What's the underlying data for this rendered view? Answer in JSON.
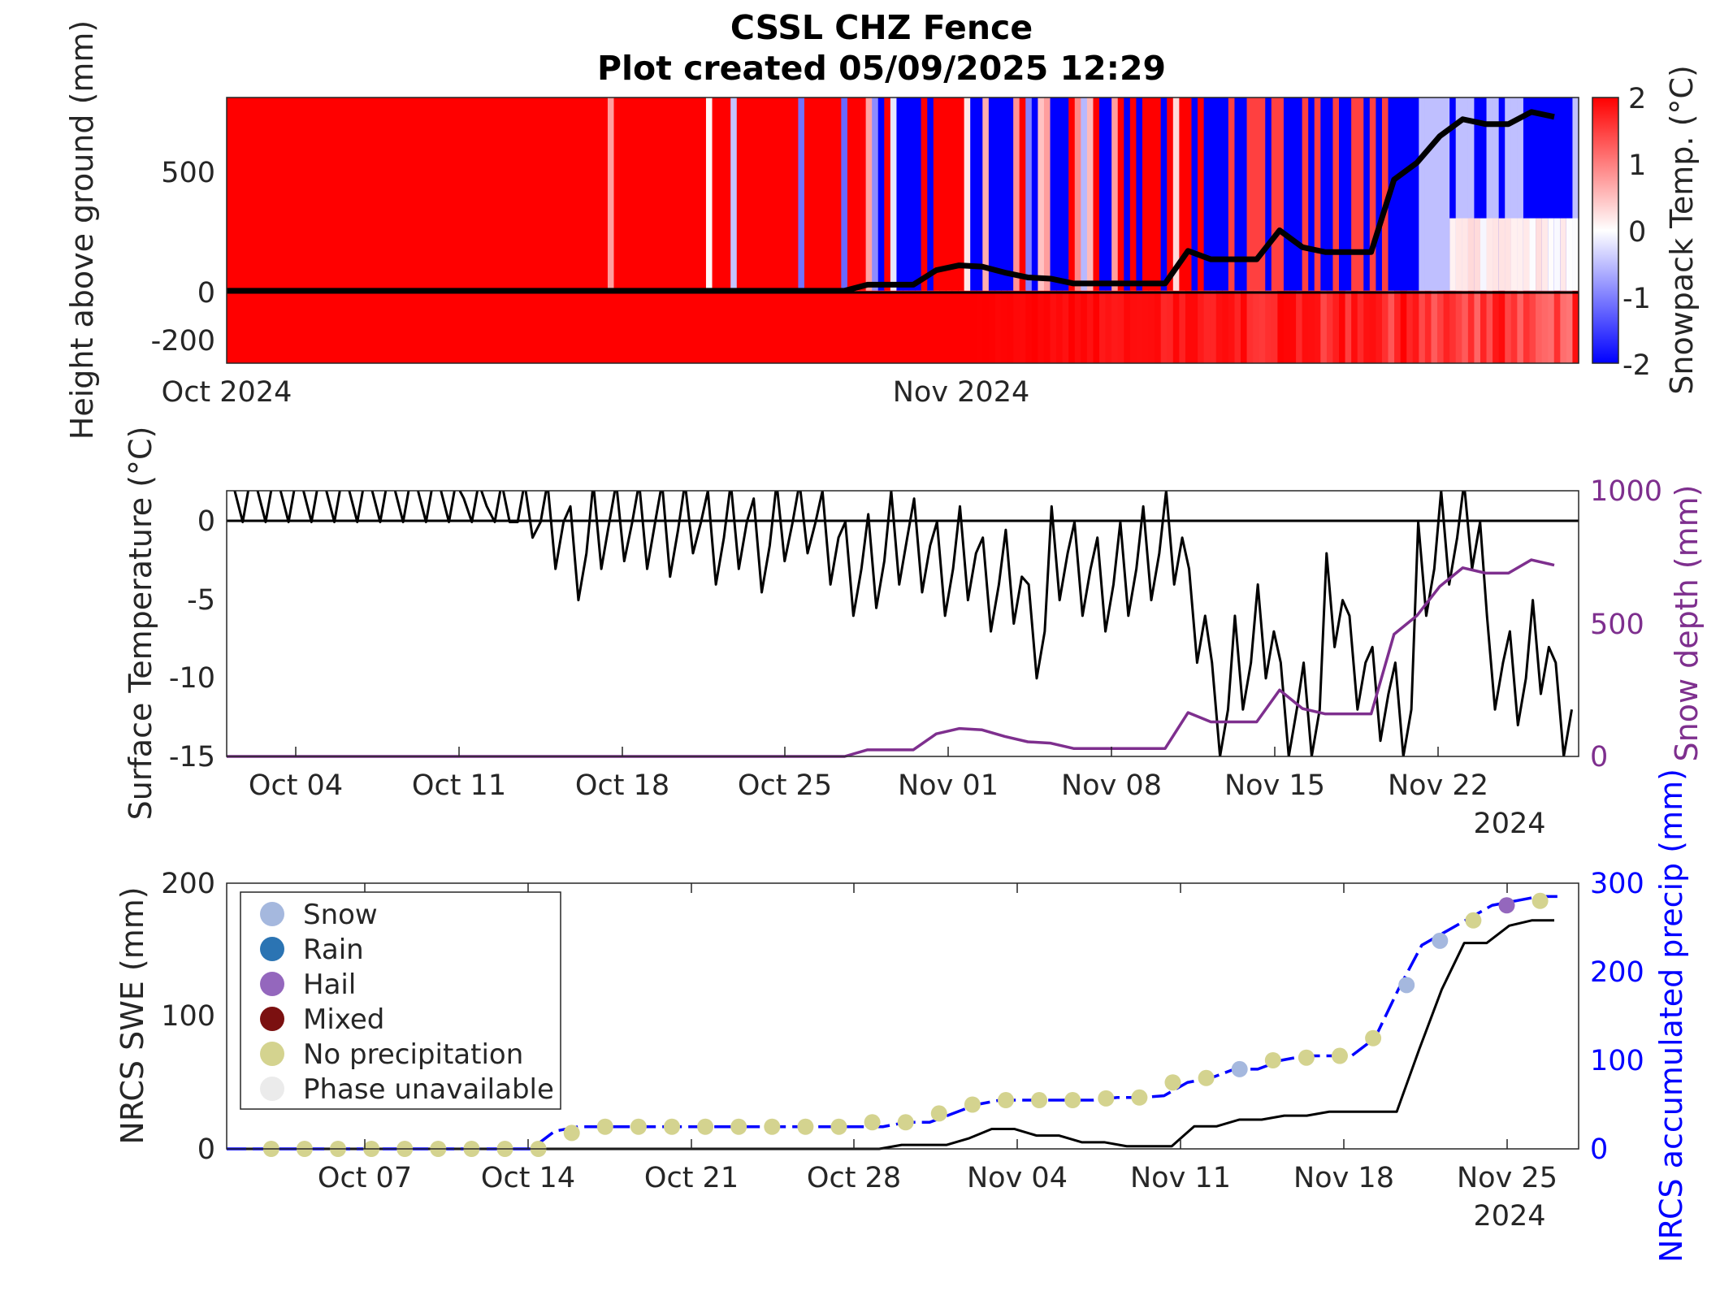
{
  "title": {
    "line1": "CSSL CHZ Fence",
    "line2": "Plot created 05/09/2025 12:29"
  },
  "colors": {
    "warm": "#ff0000",
    "cold": "#0000ff",
    "snow_depth": "#7e2f8e",
    "precip_line": "#0000ff",
    "swe_line": "#000000",
    "snow": "#a5b8de",
    "rain": "#2b74b3",
    "hail": "#9467bd",
    "mixed": "#7b1010",
    "no_precip": "#d4d38f",
    "unavailable": "#ebebeb"
  },
  "chart_data": [
    {
      "type": "heatmap",
      "ylabel": "Height above ground (mm)",
      "colorbar_label": "Snowpack Temp. (°C)",
      "color_range": [
        -2,
        2
      ],
      "colorbar_ticks": [
        "2",
        "1",
        "0",
        "-1",
        "-2"
      ],
      "ylim": [
        -300,
        800
      ],
      "yticks": [
        "500",
        "0",
        "-200"
      ],
      "x_tick_labels": [
        "Oct 2024",
        "Nov 2024"
      ],
      "x_start": "2024-10-01",
      "x_end": "2024-11-26",
      "snow_depth_mm": [
        0,
        0,
        0,
        0,
        0,
        0,
        0,
        0,
        0,
        0,
        0,
        0,
        0,
        0,
        0,
        0,
        0,
        0,
        0,
        0,
        0,
        0,
        0,
        0,
        0,
        0,
        0,
        0,
        25,
        25,
        25,
        85,
        105,
        100,
        75,
        55,
        50,
        30,
        30,
        30,
        30,
        30,
        165,
        130,
        130,
        130,
        250,
        180,
        160,
        160,
        160,
        460,
        530,
        640,
        710,
        690,
        690,
        740,
        720
      ]
    },
    {
      "type": "line",
      "ylabel": "Surface Temperature (°C)",
      "ylabel_right": "Snow depth (mm)",
      "ylim": [
        -15,
        2
      ],
      "ylim_right": [
        0,
        1000
      ],
      "yticks": [
        "0",
        "-5",
        "-10",
        "-15"
      ],
      "yticks_right": [
        "1000",
        "500",
        "0"
      ],
      "x_tick_labels": [
        "Oct 04",
        "Oct 11",
        "Oct 18",
        "Oct 25",
        "Nov 01",
        "Nov 08",
        "Nov 15",
        "Nov 22"
      ],
      "x_year_label": "2024",
      "reference_line": 0,
      "snow_depth_mm": [
        0,
        0,
        0,
        0,
        0,
        0,
        0,
        0,
        0,
        0,
        0,
        0,
        0,
        0,
        0,
        0,
        0,
        0,
        0,
        0,
        0,
        0,
        0,
        0,
        0,
        0,
        0,
        0,
        25,
        25,
        25,
        85,
        105,
        100,
        75,
        55,
        50,
        30,
        30,
        30,
        30,
        30,
        165,
        130,
        130,
        130,
        250,
        180,
        160,
        160,
        160,
        460,
        530,
        640,
        710,
        690,
        690,
        740,
        720
      ],
      "surface_temp_daily_min": [
        2,
        2,
        2,
        2,
        2,
        2,
        2,
        2,
        2,
        2,
        1.5,
        1,
        0,
        -1,
        -3,
        -5,
        -3,
        -2.5,
        -3,
        -3.5,
        -2,
        -4,
        -3,
        -4.5,
        -2.5,
        -2,
        -4,
        -6,
        -5.5,
        -4,
        -4.5,
        -6,
        -5,
        -7,
        -6.5,
        -10,
        -5,
        -6,
        -7,
        -6,
        -5,
        -4,
        -9,
        -15,
        -12,
        -10,
        -15,
        -15,
        -8,
        -12,
        -14,
        -15,
        -6,
        -4,
        -3,
        -12,
        -13,
        -11,
        -15
      ]
    },
    {
      "type": "line",
      "ylabel": "NRCS SWE (mm)",
      "ylabel_right": "NRCS accumulated precip (mm)",
      "ylim": [
        0,
        200
      ],
      "ylim_right": [
        0,
        300
      ],
      "yticks": [
        "200",
        "100",
        "0"
      ],
      "yticks_right": [
        "300",
        "200",
        "100",
        "0"
      ],
      "x_tick_labels": [
        "Oct 07",
        "Oct 14",
        "Oct 21",
        "Oct 28",
        "Nov 04",
        "Nov 11",
        "Nov 18",
        "Nov 25"
      ],
      "x_year_label": "2024",
      "swe_mm": [
        0,
        0,
        0,
        0,
        0,
        0,
        0,
        0,
        0,
        0,
        0,
        0,
        0,
        0,
        0,
        0,
        0,
        0,
        0,
        0,
        0,
        0,
        0,
        0,
        0,
        0,
        0,
        0,
        0,
        0,
        3,
        3,
        3,
        8,
        15,
        15,
        10,
        10,
        5,
        5,
        2,
        2,
        2,
        17,
        17,
        22,
        22,
        25,
        25,
        28,
        28,
        28,
        28,
        75,
        120,
        155,
        155,
        168,
        172,
        172
      ],
      "precip_mm": [
        0,
        0,
        0,
        0,
        0,
        0,
        0,
        0,
        0,
        0,
        0,
        0,
        0,
        0,
        20,
        25,
        25,
        25,
        25,
        25,
        25,
        25,
        25,
        25,
        25,
        25,
        25,
        25,
        25,
        30,
        30,
        40,
        50,
        55,
        55,
        55,
        55,
        55,
        58,
        58,
        60,
        75,
        80,
        90,
        90,
        100,
        105,
        105,
        105,
        125,
        180,
        230,
        245,
        260,
        275,
        280,
        285,
        285
      ],
      "phase_markers": [
        {
          "day": 2,
          "mm": 0,
          "phase": "no_precip"
        },
        {
          "day": 3.5,
          "mm": 0,
          "phase": "no_precip"
        },
        {
          "day": 5,
          "mm": 0,
          "phase": "no_precip"
        },
        {
          "day": 6.5,
          "mm": 0,
          "phase": "no_precip"
        },
        {
          "day": 8,
          "mm": 0,
          "phase": "no_precip"
        },
        {
          "day": 9.5,
          "mm": 0,
          "phase": "no_precip"
        },
        {
          "day": 11,
          "mm": 0,
          "phase": "no_precip"
        },
        {
          "day": 12.5,
          "mm": 0,
          "phase": "no_precip"
        },
        {
          "day": 14,
          "mm": 0,
          "phase": "no_precip"
        },
        {
          "day": 15.5,
          "mm": 18,
          "phase": "no_precip"
        },
        {
          "day": 17,
          "mm": 25,
          "phase": "no_precip"
        },
        {
          "day": 18.5,
          "mm": 25,
          "phase": "no_precip"
        },
        {
          "day": 20,
          "mm": 25,
          "phase": "no_precip"
        },
        {
          "day": 21.5,
          "mm": 25,
          "phase": "no_precip"
        },
        {
          "day": 23,
          "mm": 25,
          "phase": "no_precip"
        },
        {
          "day": 24.5,
          "mm": 25,
          "phase": "no_precip"
        },
        {
          "day": 26,
          "mm": 25,
          "phase": "no_precip"
        },
        {
          "day": 27.5,
          "mm": 25,
          "phase": "no_precip"
        },
        {
          "day": 29,
          "mm": 30,
          "phase": "no_precip"
        },
        {
          "day": 30.5,
          "mm": 30,
          "phase": "no_precip"
        },
        {
          "day": 32,
          "mm": 40,
          "phase": "no_precip"
        },
        {
          "day": 33.5,
          "mm": 50,
          "phase": "no_precip"
        },
        {
          "day": 35,
          "mm": 55,
          "phase": "no_precip"
        },
        {
          "day": 36.5,
          "mm": 55,
          "phase": "no_precip"
        },
        {
          "day": 38,
          "mm": 55,
          "phase": "no_precip"
        },
        {
          "day": 39.5,
          "mm": 57,
          "phase": "no_precip"
        },
        {
          "day": 41,
          "mm": 58,
          "phase": "no_precip"
        },
        {
          "day": 42.5,
          "mm": 75,
          "phase": "no_precip"
        },
        {
          "day": 44,
          "mm": 80,
          "phase": "no_precip"
        },
        {
          "day": 45.5,
          "mm": 90,
          "phase": "snow"
        },
        {
          "day": 47,
          "mm": 100,
          "phase": "no_precip"
        },
        {
          "day": 48.5,
          "mm": 103,
          "phase": "no_precip"
        },
        {
          "day": 50,
          "mm": 105,
          "phase": "no_precip"
        },
        {
          "day": 51.5,
          "mm": 125,
          "phase": "no_precip"
        },
        {
          "day": 53,
          "mm": 185,
          "phase": "snow"
        },
        {
          "day": 54.5,
          "mm": 235,
          "phase": "snow"
        },
        {
          "day": 56,
          "mm": 258,
          "phase": "no_precip"
        },
        {
          "day": 57.5,
          "mm": 275,
          "phase": "hail"
        },
        {
          "day": 59,
          "mm": 280,
          "phase": "no_precip"
        }
      ],
      "legend": [
        {
          "label": "Snow",
          "phase": "snow"
        },
        {
          "label": "Rain",
          "phase": "rain"
        },
        {
          "label": "Hail",
          "phase": "hail"
        },
        {
          "label": "Mixed",
          "phase": "mixed"
        },
        {
          "label": "No precipitation",
          "phase": "no_precip"
        },
        {
          "label": "Phase unavailable",
          "phase": "unavailable"
        }
      ],
      "legend_position": "top-left"
    }
  ]
}
